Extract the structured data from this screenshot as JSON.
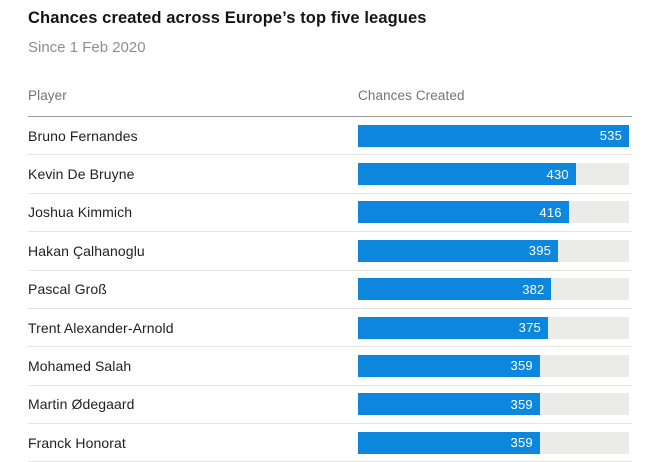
{
  "page": {
    "title": "Chances created across Europe’s top five leagues",
    "subtitle": "Since 1 Feb 2020"
  },
  "table": {
    "columns": {
      "player": "Player",
      "chances": "Chances Created"
    }
  },
  "chart_data": {
    "type": "bar",
    "orientation": "horizontal",
    "title": "Chances created across Europe’s top five leagues",
    "subtitle": "Since 1 Feb 2020",
    "xlabel": "Chances Created",
    "ylabel": "Player",
    "categories": [
      "Bruno Fernandes",
      "Kevin De Bruyne",
      "Joshua Kimmich",
      "Hakan Çalhanoglu",
      "Pascal Groß",
      "Trent Alexander-Arnold",
      "Mohamed Salah",
      "Martin Ødegaard",
      "Franck Honorat"
    ],
    "values": [
      535,
      430,
      416,
      395,
      382,
      375,
      359,
      359,
      359
    ],
    "xlim": [
      0,
      535
    ],
    "max_value": 535,
    "grid": false,
    "legend": false,
    "value_labels": "inside-end",
    "bar_color": "#0d87dd",
    "track_color": "#ebebe9"
  },
  "colors": {
    "bar": "#0d87dd",
    "bar_track": "#ebebe9",
    "title_text": "#141414",
    "subtitle_text": "#8e8e8e",
    "header_text": "#747474",
    "row_text": "#1f1f1f",
    "header_rule": "#9b9b9b",
    "row_rule": "#e4e4e2",
    "background": "#ffffff",
    "value_text": "#ffffff"
  }
}
